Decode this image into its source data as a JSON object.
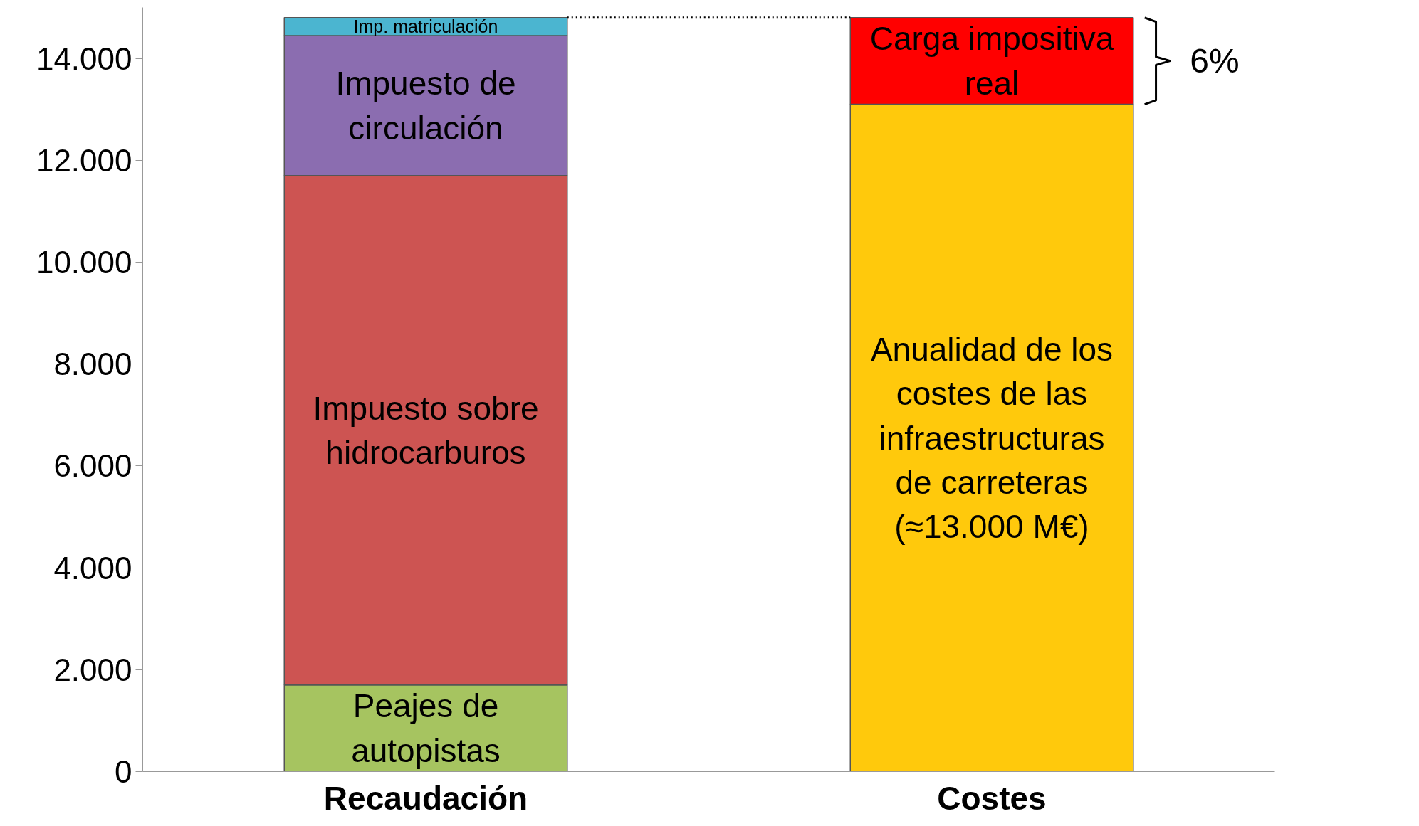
{
  "chart_data": {
    "type": "bar",
    "stacked": true,
    "categories": [
      "Recaudación",
      "Costes"
    ],
    "series": [
      {
        "name": "Peajes de autopistas",
        "color": "#a6c460",
        "values": [
          1700,
          null
        ]
      },
      {
        "name": "Impuesto sobre hidrocarburos",
        "color": "#cd5452",
        "values": [
          10000,
          null
        ]
      },
      {
        "name": "Impuesto de circulación",
        "color": "#8b6db0",
        "values": [
          2750,
          null
        ]
      },
      {
        "name": "Imp. matriculación",
        "color": "#4bb5d0",
        "values": [
          350,
          null
        ]
      },
      {
        "name": "Anualidad de los costes de las infraestructuras de carreteras (≈13.000 M€)",
        "color": "#ffc90c",
        "values": [
          null,
          13100
        ]
      },
      {
        "name": "Carga impositiva real",
        "color": "#ff0000",
        "values": [
          null,
          1700
        ]
      }
    ],
    "ylim": [
      0,
      15000
    ],
    "yticks": [
      {
        "value": 0,
        "label": "0"
      },
      {
        "value": 2000,
        "label": "2.000"
      },
      {
        "value": 4000,
        "label": "4.000"
      },
      {
        "value": 6000,
        "label": "6.000"
      },
      {
        "value": 8000,
        "label": "8.000"
      },
      {
        "value": 10000,
        "label": "10.000"
      },
      {
        "value": 12000,
        "label": "12.000"
      },
      {
        "value": 14000,
        "label": "14.000"
      }
    ],
    "ref_lines": [
      {
        "axis": "y",
        "value": 14800,
        "label": null,
        "line_style": "dotted",
        "color": "#000000"
      }
    ],
    "annotations": [
      "6%"
    ],
    "grid": false
  }
}
